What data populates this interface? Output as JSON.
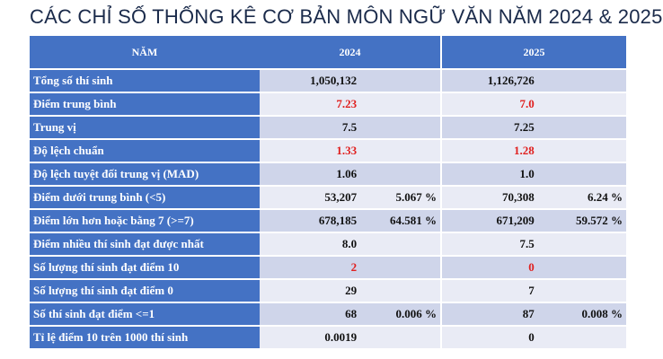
{
  "title": "CÁC CHỈ SỐ THỐNG KÊ CƠ BẢN MÔN NGỮ VĂN NĂM 2024 & 2025",
  "header": {
    "col_label": "NĂM",
    "year_a": "2024",
    "year_b": "2025"
  },
  "rows": [
    {
      "label": "Tổng số thí sinh",
      "v2024": "1,050,132",
      "p2024": "",
      "v2025": "1,126,726",
      "p2025": "",
      "red": false
    },
    {
      "label": "Điểm trung bình",
      "v2024": "7.23",
      "p2024": "",
      "v2025": "7.0",
      "p2025": "",
      "red": true
    },
    {
      "label": "Trung vị",
      "v2024": "7.5",
      "p2024": "",
      "v2025": "7.25",
      "p2025": "",
      "red": false
    },
    {
      "label": "Độ lệch chuẩn",
      "v2024": "1.33",
      "p2024": "",
      "v2025": "1.28",
      "p2025": "",
      "red": true
    },
    {
      "label": "Độ lệch tuyệt đối trung vị (MAD)",
      "v2024": "1.06",
      "p2024": "",
      "v2025": "1.0",
      "p2025": "",
      "red": false
    },
    {
      "label": "Điểm dưới trung bình (<5)",
      "v2024": "53,207",
      "p2024": "5.067 %",
      "v2025": "70,308",
      "p2025": "6.24 %",
      "red": false
    },
    {
      "label": "Điểm lớn hơn hoặc bằng 7 (>=7)",
      "v2024": "678,185",
      "p2024": "64.581 %",
      "v2025": "671,209",
      "p2025": "59.572 %",
      "red": false
    },
    {
      "label": "Điểm nhiều thí sinh đạt được nhất",
      "v2024": "8.0",
      "p2024": "",
      "v2025": "7.5",
      "p2025": "",
      "red": false
    },
    {
      "label": "Số lượng thí sinh đạt điểm 10",
      "v2024": "2",
      "p2024": "",
      "v2025": "0",
      "p2025": "",
      "red": true
    },
    {
      "label": "Số lượng thí sinh đạt điểm 0",
      "v2024": "29",
      "p2024": "",
      "v2025": "7",
      "p2025": "",
      "red": false
    },
    {
      "label": "Số thí sinh đạt điểm <=1",
      "v2024": "68",
      "p2024": "0.006 %",
      "v2025": "87",
      "p2025": "0.008 %",
      "red": false
    },
    {
      "label": "Tỉ lệ điểm 10 trên 1000 thí sinh",
      "v2024": "0.0019",
      "p2024": "",
      "v2025": "0",
      "p2025": "",
      "red": false
    }
  ],
  "colors": {
    "header_blue": "#4472c4",
    "band_dark": "#cfd5ea",
    "band_light": "#e9ebf5",
    "highlight_red": "#e0201f"
  }
}
